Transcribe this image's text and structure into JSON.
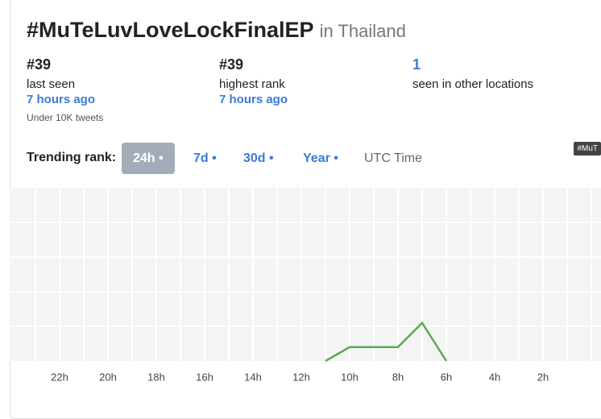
{
  "header": {
    "title": "#MuTeLuvLoveLockFinalEP",
    "location": "in Thailand"
  },
  "stats": [
    {
      "value": "#39",
      "label": "last seen",
      "time": "7 hours ago",
      "note": "Under 10K tweets"
    },
    {
      "value": "#39",
      "label": "highest rank",
      "time": "7 hours ago"
    },
    {
      "value": "1",
      "label": "seen in other locations"
    }
  ],
  "controls": {
    "label": "Trending rank:",
    "options": [
      "24h •",
      "7d •",
      "30d •",
      "Year •"
    ],
    "active": 0,
    "timezone": "UTC Time"
  },
  "tooltip": "#MuT",
  "chart_data": {
    "type": "line",
    "color": "#5aaa4f",
    "grid": true,
    "x": [
      11,
      10,
      9,
      8,
      7,
      6
    ],
    "values": [
      50,
      46,
      46,
      46,
      39,
      50
    ],
    "xlim": [
      24,
      0
    ],
    "ylim": [
      50,
      0
    ],
    "xticks": [
      {
        "value": 22,
        "label": "22h"
      },
      {
        "value": 20,
        "label": "20h"
      },
      {
        "value": 18,
        "label": "18h"
      },
      {
        "value": 16,
        "label": "16h"
      },
      {
        "value": 14,
        "label": "14h"
      },
      {
        "value": 12,
        "label": "12h"
      },
      {
        "value": 10,
        "label": "10h"
      },
      {
        "value": 8,
        "label": "8h"
      },
      {
        "value": 6,
        "label": "6h"
      },
      {
        "value": 4,
        "label": "4h"
      },
      {
        "value": 2,
        "label": "2h"
      }
    ]
  }
}
